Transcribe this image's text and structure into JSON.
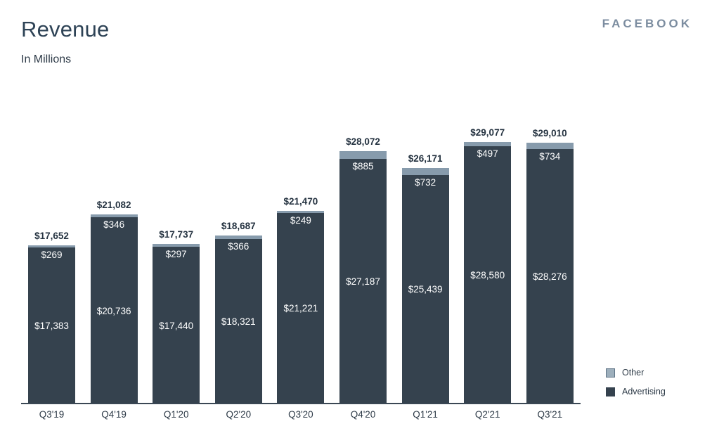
{
  "header": {
    "title": "Revenue",
    "subtitle": "In Millions",
    "brand": "FACEBOOK"
  },
  "legend": {
    "position": "bottom-right",
    "items": [
      {
        "label": "Other",
        "color": "#9DAFBC",
        "border": "#5F7486"
      },
      {
        "label": "Advertising",
        "color": "#35424E",
        "border": "#35424E"
      }
    ]
  },
  "chart_data": {
    "type": "bar",
    "stacked": true,
    "title": "Revenue",
    "subtitle": "In Millions",
    "unit": "USD millions",
    "grid": false,
    "y_axis_visible": false,
    "legend_position": "bottom-right",
    "categories": [
      "Q3'19",
      "Q4'19",
      "Q1'20",
      "Q2'20",
      "Q3'20",
      "Q4'20",
      "Q1'21",
      "Q2'21",
      "Q3'21"
    ],
    "series": [
      {
        "name": "Advertising",
        "color": "#35424E",
        "values": [
          17383,
          20736,
          17440,
          18321,
          21221,
          27187,
          25439,
          28580,
          28276
        ],
        "labels": [
          "$17,383",
          "$20,736",
          "$17,440",
          "$18,321",
          "$21,221",
          "$27,187",
          "$25,439",
          "$28,580",
          "$28,276"
        ]
      },
      {
        "name": "Other",
        "color": "#879BAC",
        "values": [
          269,
          346,
          297,
          366,
          249,
          885,
          732,
          497,
          734
        ],
        "labels": [
          "$269",
          "$346",
          "$297",
          "$366",
          "$249",
          "$885",
          "$732",
          "$497",
          "$734"
        ]
      }
    ],
    "totals": {
      "values": [
        17652,
        21082,
        17737,
        18687,
        21470,
        28072,
        26171,
        29077,
        29010
      ],
      "labels": [
        "$17,652",
        "$21,082",
        "$17,737",
        "$18,687",
        "$21,470",
        "$28,072",
        "$26,171",
        "$29,077",
        "$29,010"
      ]
    }
  }
}
